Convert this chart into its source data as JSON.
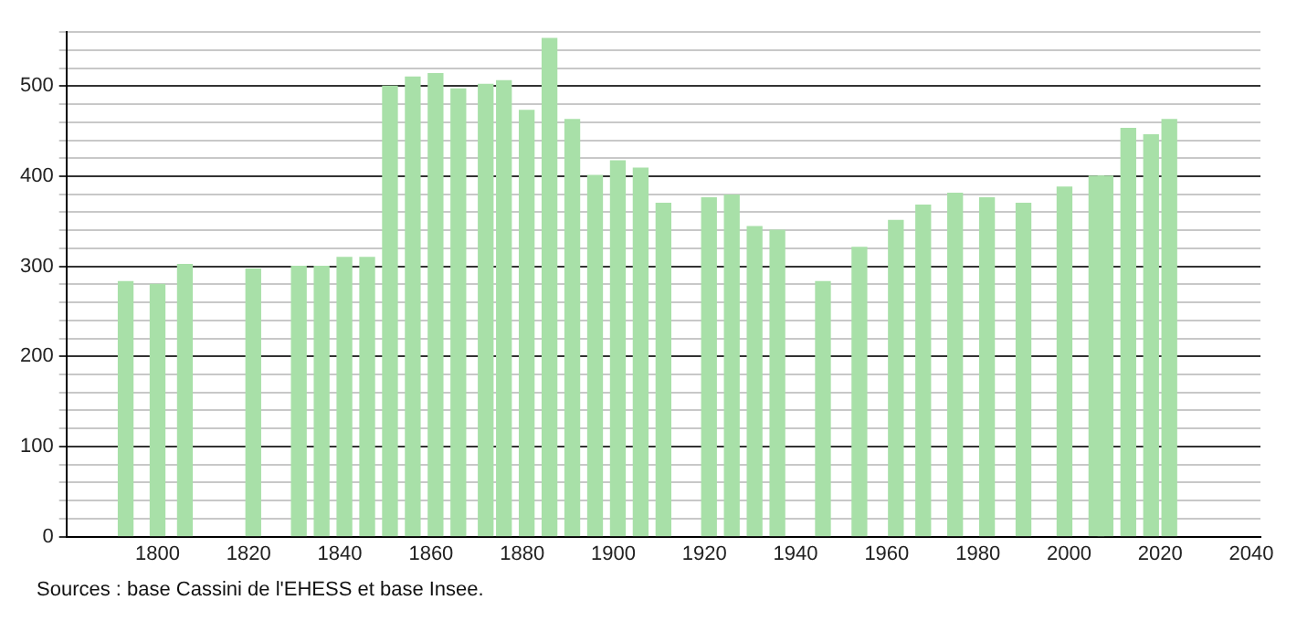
{
  "chart_data": {
    "type": "bar",
    "x": [
      1793,
      1800,
      1806,
      1821,
      1831,
      1836,
      1841,
      1846,
      1851,
      1856,
      1861,
      1866,
      1872,
      1876,
      1881,
      1886,
      1891,
      1896,
      1901,
      1906,
      1911,
      1921,
      1926,
      1931,
      1936,
      1946,
      1954,
      1962,
      1968,
      1975,
      1982,
      1990,
      1999,
      2006,
      2008,
      2013,
      2018,
      2022
    ],
    "values": [
      283,
      280,
      302,
      297,
      300,
      300,
      310,
      310,
      500,
      510,
      514,
      497,
      502,
      506,
      473,
      553,
      463,
      401,
      417,
      409,
      370,
      376,
      379,
      344,
      340,
      283,
      321,
      351,
      368,
      381,
      376,
      370,
      388,
      400,
      400,
      453,
      446,
      463
    ],
    "color": "#a8e0a8",
    "xlim": [
      1780,
      2042
    ],
    "xticks": [
      1800,
      1820,
      1840,
      1860,
      1880,
      1900,
      1920,
      1940,
      1960,
      1980,
      2000,
      2020,
      2040
    ],
    "ylim": [
      0,
      560
    ],
    "yticks": [
      0,
      {
        "value": 20,
        "label": null
      },
      {
        "value": 40,
        "label": null
      },
      {
        "value": 60,
        "label": null
      },
      {
        "value": 80,
        "label": null
      },
      100,
      {
        "value": 120,
        "label": null
      },
      {
        "value": 140,
        "label": null
      },
      {
        "value": 160,
        "label": null
      },
      {
        "value": 180,
        "label": null
      },
      200,
      {
        "value": 220,
        "label": null
      },
      {
        "value": 240,
        "label": null
      },
      {
        "value": 260,
        "label": null
      },
      {
        "value": 280,
        "label": null
      },
      300,
      {
        "value": 320,
        "label": null
      },
      {
        "value": 340,
        "label": null
      },
      {
        "value": 360,
        "label": null
      },
      {
        "value": 380,
        "label": null
      },
      400,
      {
        "value": 420,
        "label": null
      },
      {
        "value": 440,
        "label": null
      },
      {
        "value": 460,
        "label": null
      },
      {
        "value": 480,
        "label": null
      },
      500,
      {
        "value": 520,
        "label": null
      },
      {
        "value": 540,
        "label": null
      },
      {
        "value": 560,
        "label": null
      }
    ],
    "grid": "y",
    "annotations": [
      "Sources : base Cassini de l'EHESS et base Insee."
    ]
  }
}
